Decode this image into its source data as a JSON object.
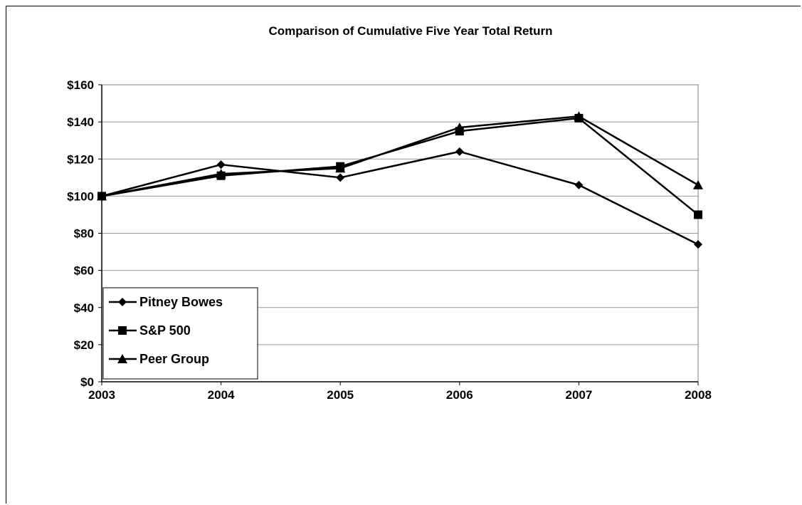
{
  "chart_data": {
    "type": "line",
    "title": "Comparison of Cumulative Five Year Total Return",
    "xlabel": "",
    "ylabel": "",
    "x": [
      "2003",
      "2004",
      "2005",
      "2006",
      "2007",
      "2008"
    ],
    "ylim": [
      0,
      160
    ],
    "y_ticks": [
      0,
      20,
      40,
      60,
      80,
      100,
      120,
      140,
      160
    ],
    "y_tick_labels": [
      "$0",
      "$20",
      "$40",
      "$60",
      "$80",
      "$100",
      "$120",
      "$140",
      "$160"
    ],
    "grid": "horizontal",
    "legend_position": "bottom-left",
    "series": [
      {
        "name": "Pitney Bowes",
        "marker": "diamond",
        "values": [
          100,
          117,
          110,
          124,
          106,
          74
        ]
      },
      {
        "name": "S&P 500",
        "marker": "square",
        "values": [
          100,
          111,
          116,
          135,
          142,
          90
        ]
      },
      {
        "name": "Peer Group",
        "marker": "triangle",
        "values": [
          100,
          112,
          115,
          137,
          143,
          106
        ]
      }
    ],
    "colors": {
      "line": "#000000",
      "grid": "#999999"
    }
  }
}
